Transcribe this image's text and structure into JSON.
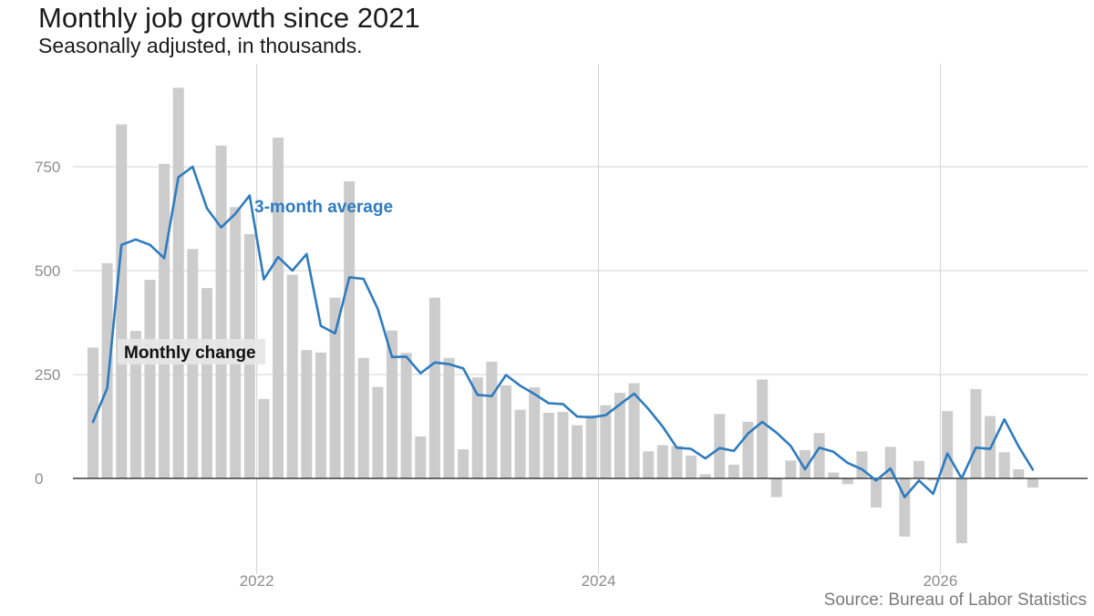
{
  "title": "Monthly job growth since 2021",
  "subtitle": "Seasonally adjusted, in thousands.",
  "source": "Source: Bureau of Labor Statistics",
  "colors": {
    "bar": "#cccccc",
    "line": "#2e7bbf",
    "grid": "#d3d3d3",
    "axis": "#1a1a1a"
  },
  "chart_data": {
    "type": "bar",
    "start": "2021-01",
    "x_ticks": [
      {
        "x": "2022-01",
        "label": "2022"
      },
      {
        "x": "2024-01",
        "label": "2024"
      },
      {
        "x": "2026-01",
        "label": "2026"
      }
    ],
    "y_ticks": [
      0,
      250,
      500,
      750
    ],
    "ylim": [
      -200,
      1000
    ],
    "grid": true,
    "series": [
      {
        "name": "Monthly change",
        "values": [
          315,
          518,
          852,
          355,
          478,
          757,
          940,
          552,
          458,
          801,
          653,
          588,
          191,
          820,
          490,
          309,
          303,
          435,
          715,
          290,
          220,
          356,
          302,
          101,
          435,
          290,
          70,
          243,
          281,
          224,
          165,
          219,
          158,
          160,
          128,
          152,
          176,
          206,
          229,
          65,
          80,
          78,
          55,
          10,
          155,
          33,
          136,
          238,
          -45,
          43,
          68,
          109,
          14,
          -14,
          65,
          -70,
          76,
          -140,
          42,
          -5,
          162,
          -156,
          215,
          150,
          63,
          22,
          -22
        ]
      },
      {
        "name": "3-month average",
        "values": [
          136,
          217,
          562,
          575,
          562,
          530,
          725,
          750,
          650,
          604,
          637,
          681,
          479,
          533,
          500,
          540,
          367,
          349,
          484,
          480,
          408,
          292,
          293,
          253,
          279,
          275,
          265,
          201,
          198,
          249,
          223,
          203,
          181,
          179,
          149,
          147,
          152,
          178,
          204,
          167,
          125,
          74,
          71,
          48,
          73,
          66,
          108,
          136,
          110,
          78,
          22,
          74,
          64,
          37,
          22,
          -5,
          24,
          -45,
          -5,
          -37,
          60,
          0,
          74,
          71,
          142,
          77,
          21
        ]
      }
    ]
  }
}
